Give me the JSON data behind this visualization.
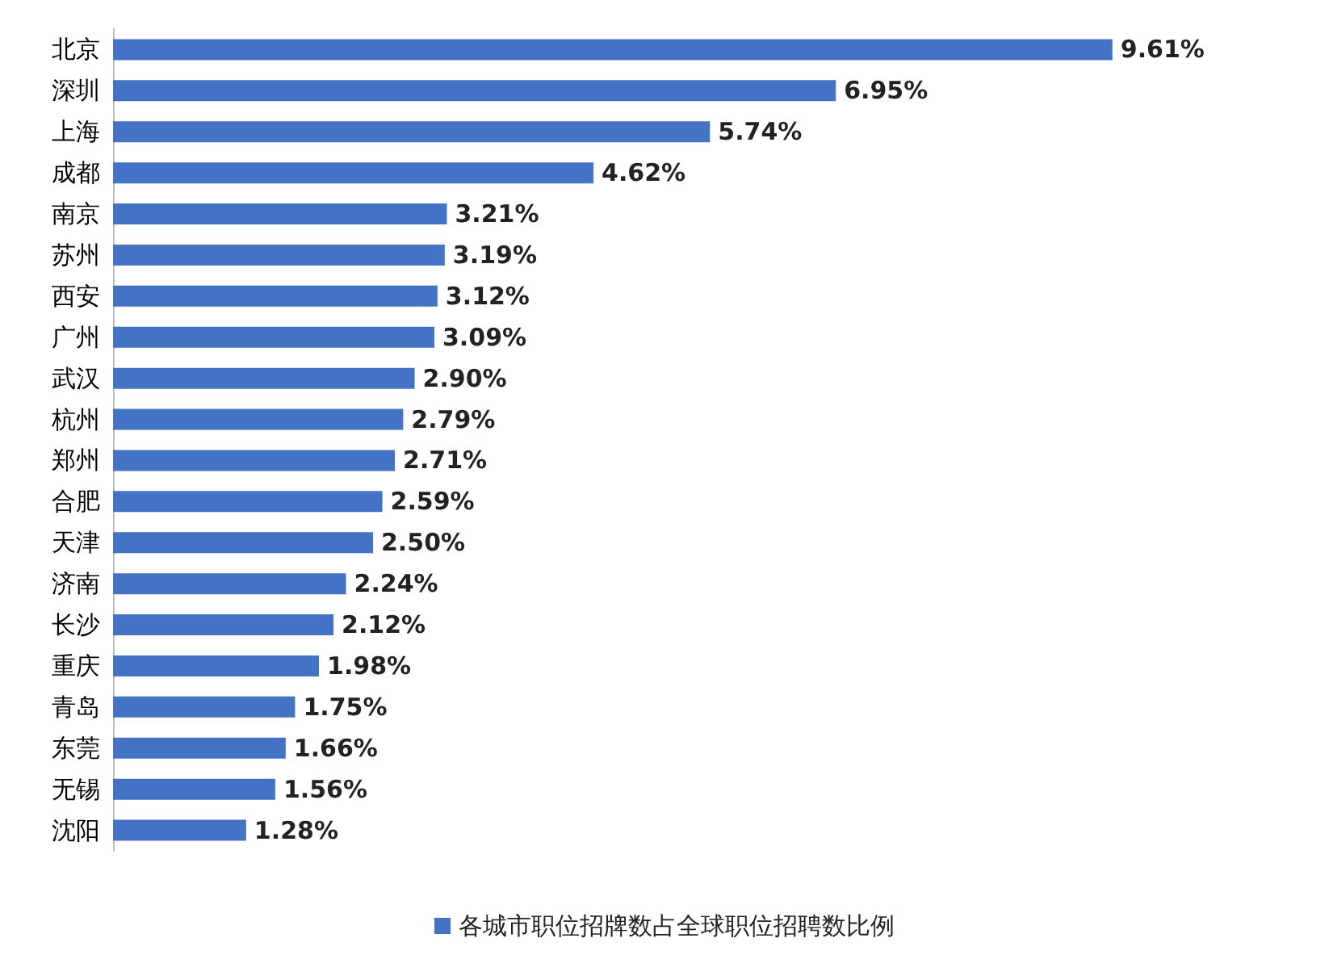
{
  "chart_data": {
    "type": "bar",
    "orientation": "horizontal",
    "tick_labels": "y",
    "grid": false,
    "legend": "bottom",
    "categories": [
      "北京",
      "深圳",
      "上海",
      "成都",
      "南京",
      "苏州",
      "西安",
      "广州",
      "武汉",
      "杭州",
      "郑州",
      "合肥",
      "天津",
      "济南",
      "长沙",
      "重庆",
      "青岛",
      "东莞",
      "无锡",
      "沈阳"
    ],
    "series": [
      {
        "name": "各城市职位招牌数占全球职位招聘数比例",
        "color": "#4472c4",
        "values": [
          9.61,
          6.95,
          5.74,
          4.62,
          3.21,
          3.19,
          3.12,
          3.09,
          2.9,
          2.79,
          2.71,
          2.59,
          2.5,
          2.24,
          2.12,
          1.98,
          1.75,
          1.66,
          1.56,
          1.28
        ],
        "value_labels": [
          "9.61%",
          "6.95%",
          "5.74%",
          "4.62%",
          "3.21%",
          "3.19%",
          "3.12%",
          "3.09%",
          "2.90%",
          "2.79%",
          "2.71%",
          "2.59%",
          "2.50%",
          "2.24%",
          "2.12%",
          "1.98%",
          "1.75%",
          "1.66%",
          "1.56%",
          "1.28%"
        ]
      }
    ]
  }
}
